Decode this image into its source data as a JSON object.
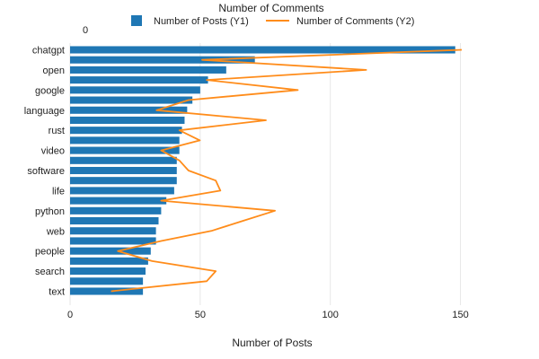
{
  "chart_data": {
    "type": "bar",
    "orientation": "horizontal",
    "top_axis_title": "Number of Comments",
    "top_axis_ticks": [
      0
    ],
    "xlabel": "Number of Posts",
    "x_ticks": [
      0,
      50,
      100,
      150
    ],
    "xlim": [
      0,
      175
    ],
    "y2lim": [
      0,
      1000
    ],
    "grid": true,
    "legend_position": "top",
    "labeled_categories": [
      "chatgpt",
      "open",
      "google",
      "language",
      "rust",
      "video",
      "software",
      "life",
      "python",
      "web",
      "people",
      "search",
      "text"
    ],
    "categories": [
      "chatgpt",
      "",
      "open",
      "",
      "google",
      "",
      "language",
      "",
      "rust",
      "",
      "video",
      "",
      "software",
      "",
      "life",
      "",
      "python",
      "",
      "web",
      "",
      "people",
      "",
      "search",
      "",
      "text"
    ],
    "series": [
      {
        "name": "Number of Posts (Y1)",
        "type": "bar",
        "color": "#1f77b4",
        "values": [
          148,
          71,
          60,
          53,
          50,
          47,
          45,
          44,
          43,
          42,
          42,
          41,
          41,
          41,
          40,
          37,
          35,
          34,
          33,
          33,
          31,
          30,
          29,
          28,
          28
        ]
      },
      {
        "name": "Number of Comments (Y2)",
        "type": "line",
        "color": "#ff8c1a",
        "values": [
          860,
          290,
          650,
          300,
          500,
          260,
          190,
          430,
          240,
          285,
          200,
          240,
          260,
          320,
          330,
          200,
          450,
          380,
          310,
          200,
          105,
          180,
          320,
          300,
          90
        ]
      }
    ]
  }
}
